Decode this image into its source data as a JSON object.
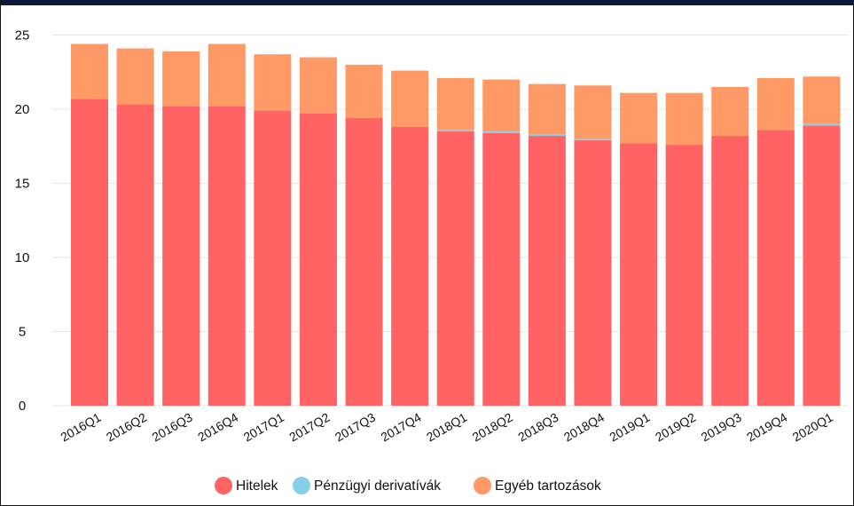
{
  "chart_data": {
    "type": "bar",
    "stacked": true,
    "categories": [
      "2016Q1",
      "2016Q2",
      "2016Q3",
      "2016Q4",
      "2017Q1",
      "2017Q2",
      "2017Q3",
      "2017Q4",
      "2018Q1",
      "2018Q2",
      "2018Q3",
      "2018Q4",
      "2019Q1",
      "2019Q2",
      "2019Q3",
      "2019Q4",
      "2020Q1"
    ],
    "series": [
      {
        "name": "Hitelek",
        "color": "#ff6363",
        "values": [
          20.7,
          20.3,
          20.2,
          20.2,
          19.9,
          19.7,
          19.4,
          18.8,
          18.5,
          18.4,
          18.2,
          17.9,
          17.7,
          17.6,
          18.2,
          18.6,
          18.9
        ]
      },
      {
        "name": "Pénzügyi derivatívák",
        "color": "#87cfe8",
        "values": [
          0.0,
          0.0,
          0.0,
          0.0,
          0.0,
          0.0,
          0.0,
          0.0,
          0.1,
          0.1,
          0.1,
          0.1,
          0.0,
          0.0,
          0.0,
          0.0,
          0.1
        ]
      },
      {
        "name": "Egyéb tartozások",
        "color": "#ff9966",
        "values": [
          3.7,
          3.8,
          3.7,
          4.2,
          3.8,
          3.8,
          3.6,
          3.8,
          3.5,
          3.5,
          3.4,
          3.6,
          3.4,
          3.5,
          3.3,
          3.5,
          3.2
        ]
      }
    ],
    "ylim": [
      0,
      25
    ],
    "yticks": [
      0,
      5,
      10,
      15,
      20,
      25
    ],
    "grid": true,
    "legend_position": "bottom",
    "title": "",
    "xlabel": "",
    "ylabel": ""
  }
}
